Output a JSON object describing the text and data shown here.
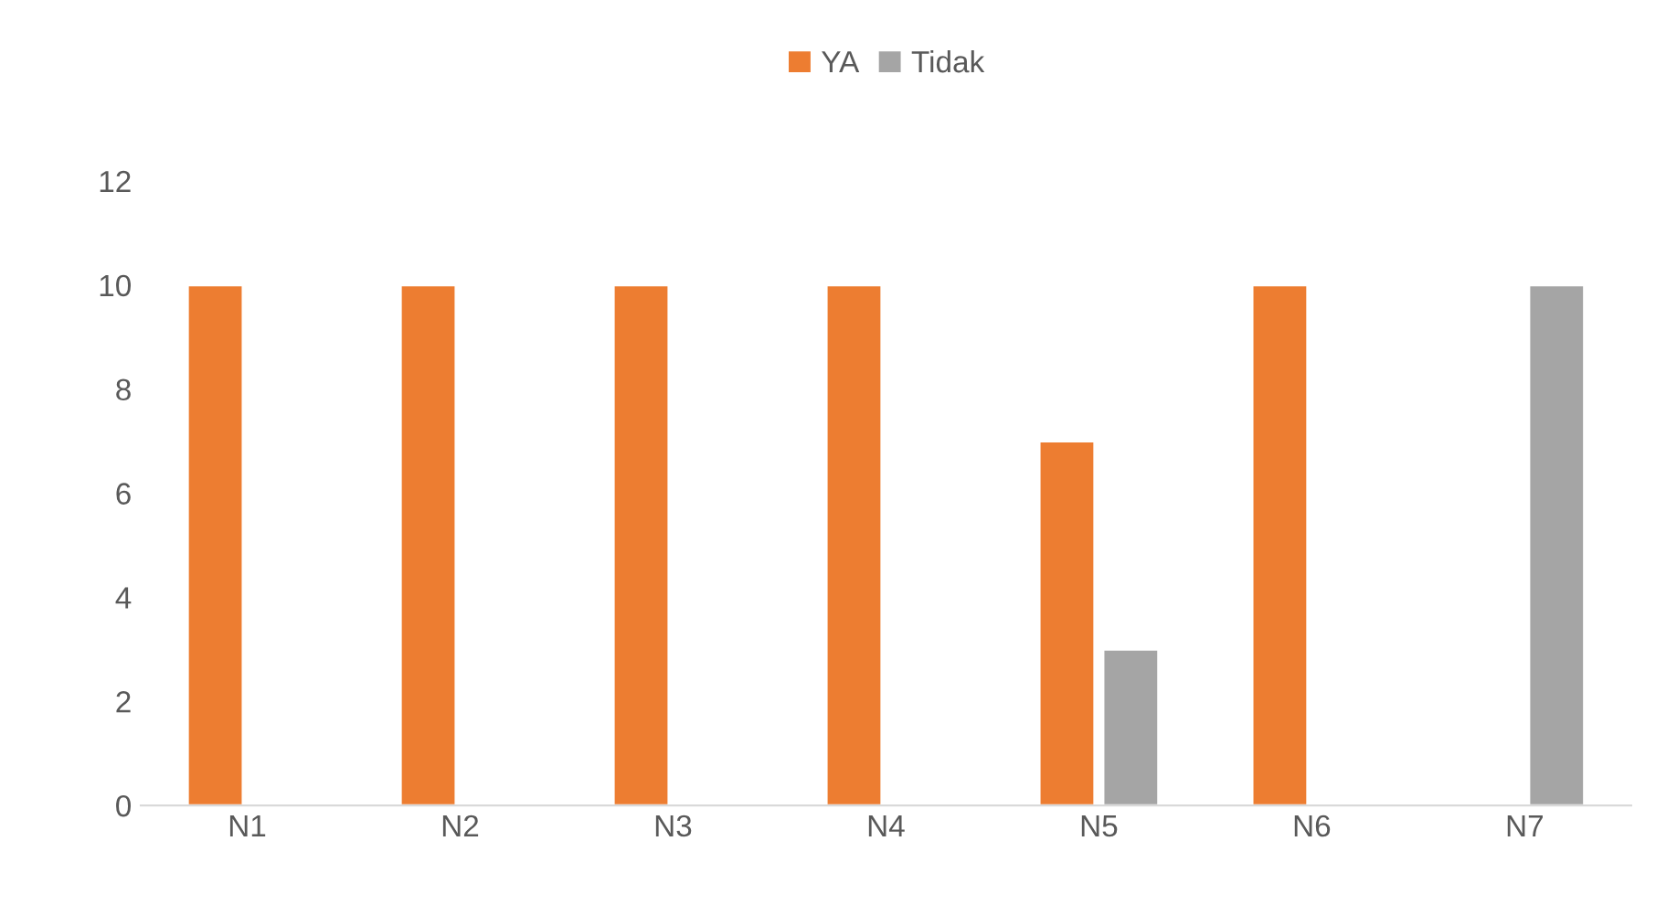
{
  "chart_data": {
    "type": "bar",
    "categories": [
      "N1",
      "N2",
      "N3",
      "N4",
      "N5",
      "N6",
      "N7"
    ],
    "series": [
      {
        "name": "YA",
        "color": "#ed7d31",
        "values": [
          10,
          10,
          10,
          10,
          7,
          10,
          null
        ]
      },
      {
        "name": "Tidak",
        "color": "#a5a5a5",
        "values": [
          null,
          null,
          null,
          null,
          3,
          null,
          10
        ]
      }
    ],
    "ylim": [
      0,
      12
    ],
    "yticks": [
      0,
      2,
      4,
      6,
      8,
      10,
      12
    ],
    "grid": false,
    "legend": "top"
  }
}
